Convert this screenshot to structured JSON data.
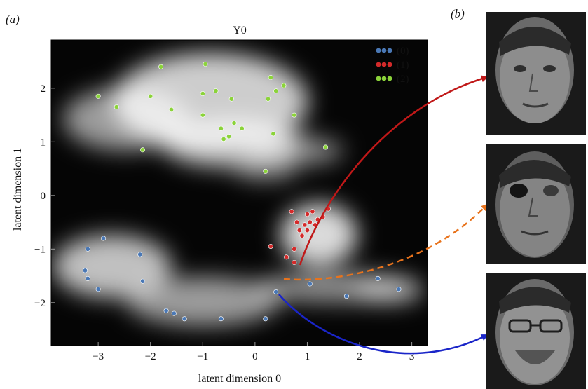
{
  "figure": {
    "panel_a_label": "(a)",
    "panel_b_label": "(b)"
  },
  "colors": {
    "class_0": "#4a78b5",
    "class_1": "#d42a2a",
    "class_2": "#8bd33a",
    "arrow_red": "#c01818",
    "arrow_orange": "#e8731c",
    "arrow_blue": "#1a25c8"
  },
  "chart_data": {
    "type": "scatter",
    "title": "Y0",
    "xlabel": "latent dimension 0",
    "ylabel": "latent dimension 1",
    "xlim": [
      -3.9,
      3.3
    ],
    "ylim": [
      -2.8,
      2.9
    ],
    "xticks": [
      -3,
      -2,
      -1,
      0,
      1,
      2,
      3
    ],
    "xtick_labels": [
      "−3",
      "−2",
      "−1",
      "0",
      "1",
      "2",
      "3"
    ],
    "yticks": [
      -2,
      -1,
      0,
      1,
      2
    ],
    "ytick_labels": [
      "−2",
      "−1",
      "0",
      "1",
      "2"
    ],
    "background": "variance heatmap (grayscale, black = low, white = high)",
    "legend_position": "top-right",
    "series": [
      {
        "name": "(0)",
        "color_key": "class_0",
        "points": [
          [
            -3.2,
            -1.0
          ],
          [
            -2.9,
            -0.8
          ],
          [
            -3.25,
            -1.4
          ],
          [
            -3.2,
            -1.55
          ],
          [
            -3.0,
            -1.75
          ],
          [
            -2.2,
            -1.1
          ],
          [
            -2.15,
            -1.6
          ],
          [
            -1.7,
            -2.15
          ],
          [
            -1.55,
            -2.2
          ],
          [
            -1.35,
            -2.3
          ],
          [
            -0.65,
            -2.3
          ],
          [
            0.2,
            -2.3
          ],
          [
            0.4,
            -1.8
          ],
          [
            1.05,
            -1.65
          ],
          [
            1.75,
            -1.88
          ],
          [
            2.35,
            -1.55
          ],
          [
            2.75,
            -1.75
          ]
        ]
      },
      {
        "name": "(1)",
        "color_key": "class_1",
        "points": [
          [
            0.3,
            -0.95
          ],
          [
            0.6,
            -1.15
          ],
          [
            0.75,
            -1.25
          ],
          [
            0.7,
            -0.3
          ],
          [
            0.8,
            -0.5
          ],
          [
            0.85,
            -0.65
          ],
          [
            0.9,
            -0.75
          ],
          [
            0.95,
            -0.55
          ],
          [
            1.0,
            -0.35
          ],
          [
            1.0,
            -0.65
          ],
          [
            1.05,
            -0.5
          ],
          [
            1.1,
            -0.3
          ],
          [
            1.15,
            -0.55
          ],
          [
            1.2,
            -0.45
          ],
          [
            1.3,
            -0.4
          ],
          [
            1.4,
            -0.25
          ],
          [
            0.75,
            -1.0
          ]
        ]
      },
      {
        "name": "(2)",
        "color_key": "class_2",
        "points": [
          [
            -1.8,
            2.4
          ],
          [
            -0.95,
            2.45
          ],
          [
            -3.0,
            1.85
          ],
          [
            -2.65,
            1.65
          ],
          [
            -2.0,
            1.85
          ],
          [
            -1.6,
            1.6
          ],
          [
            -1.0,
            1.9
          ],
          [
            -0.75,
            1.95
          ],
          [
            -0.45,
            1.8
          ],
          [
            -1.0,
            1.5
          ],
          [
            -0.65,
            1.25
          ],
          [
            -0.4,
            1.35
          ],
          [
            -0.25,
            1.25
          ],
          [
            0.25,
            1.8
          ],
          [
            0.4,
            1.95
          ],
          [
            0.55,
            2.05
          ],
          [
            0.3,
            2.2
          ],
          [
            -0.5,
            1.1
          ],
          [
            -0.6,
            1.05
          ],
          [
            -2.15,
            0.85
          ],
          [
            0.35,
            1.15
          ],
          [
            0.75,
            1.5
          ],
          [
            1.35,
            0.9
          ],
          [
            0.2,
            0.45
          ]
        ]
      }
    ]
  },
  "faces": [
    {
      "label": "face-photo-1"
    },
    {
      "label": "face-photo-2"
    },
    {
      "label": "face-photo-3"
    }
  ]
}
